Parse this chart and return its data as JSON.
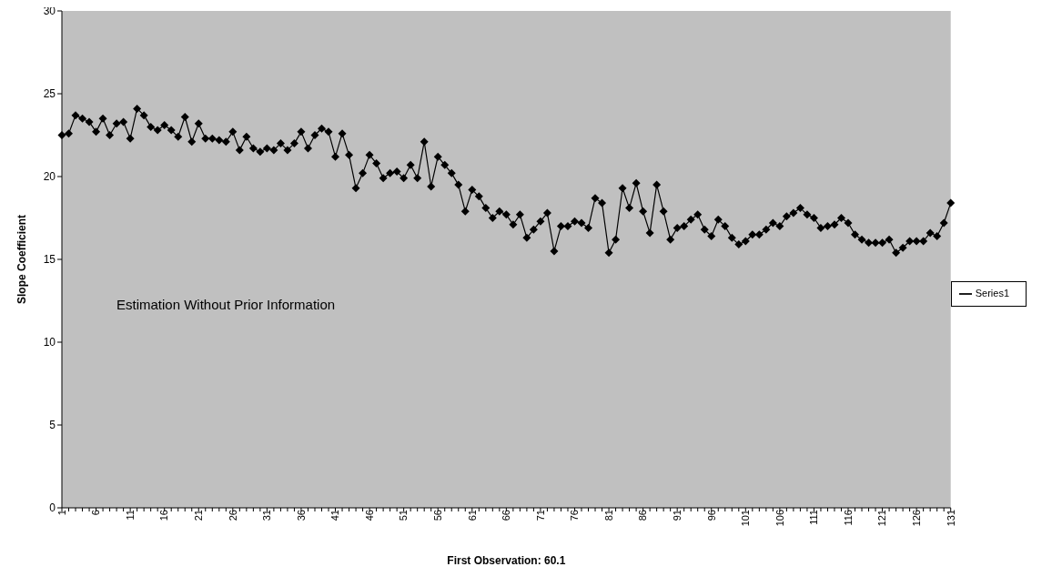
{
  "chart_data": {
    "type": "line",
    "xlabel": "First Observation: 60.1",
    "ylabel": "Slope Coefficient",
    "annotations": [
      "Estimation Without Prior Information"
    ],
    "categories": [
      "1",
      null,
      null,
      null,
      null,
      "6",
      null,
      null,
      null,
      null,
      "11",
      null,
      null,
      null,
      null,
      "16",
      null,
      null,
      null,
      null,
      "21",
      null,
      null,
      null,
      null,
      "26",
      null,
      null,
      null,
      null,
      "31",
      null,
      null,
      null,
      null,
      "36",
      null,
      null,
      null,
      null,
      "41",
      null,
      null,
      null,
      null,
      "46",
      null,
      null,
      null,
      null,
      "51",
      null,
      null,
      null,
      null,
      "56",
      null,
      null,
      null,
      null,
      "61",
      null,
      null,
      null,
      null,
      "66",
      null,
      null,
      null,
      null,
      "71",
      null,
      null,
      null,
      null,
      "76",
      null,
      null,
      null,
      null,
      "81",
      null,
      null,
      null,
      null,
      "86",
      null,
      null,
      null,
      null,
      "91",
      null,
      null,
      null,
      null,
      "96",
      null,
      null,
      null,
      null,
      "101",
      null,
      null,
      null,
      null,
      "106",
      null,
      null,
      null,
      null,
      "111",
      null,
      null,
      null,
      null,
      "116",
      null,
      null,
      null,
      null,
      "121",
      null,
      null,
      null,
      null,
      "126",
      null,
      null,
      null,
      null,
      "131"
    ],
    "series": [
      {
        "name": "Series1",
        "color": "#000000",
        "values": [
          22.5,
          22.6,
          23.7,
          23.5,
          23.3,
          22.7,
          23.5,
          22.5,
          23.2,
          23.3,
          22.3,
          24.1,
          23.7,
          23.0,
          22.8,
          23.1,
          22.8,
          22.4,
          23.6,
          22.1,
          23.2,
          22.3,
          22.3,
          22.2,
          22.1,
          22.7,
          21.6,
          22.4,
          21.7,
          21.5,
          21.7,
          21.6,
          22.0,
          21.6,
          22.0,
          22.7,
          21.7,
          22.5,
          22.9,
          22.7,
          21.2,
          22.6,
          21.3,
          19.3,
          20.2,
          21.3,
          20.8,
          19.9,
          20.2,
          20.3,
          19.9,
          20.7,
          19.9,
          22.1,
          19.4,
          21.2,
          20.7,
          20.2,
          19.5,
          17.9,
          19.2,
          18.8,
          18.1,
          17.5,
          17.9,
          17.7,
          17.1,
          17.7,
          16.3,
          16.8,
          17.3,
          17.8,
          15.5,
          17.0,
          17.0,
          17.3,
          17.2,
          16.9,
          18.7,
          18.4,
          15.4,
          16.2,
          19.3,
          18.1,
          19.6,
          17.9,
          16.6,
          19.5,
          17.9,
          16.2,
          16.9,
          17.0,
          17.4,
          17.7,
          16.8,
          16.4,
          17.4,
          17.0,
          16.3,
          15.9,
          16.1,
          16.5,
          16.5,
          16.8,
          17.2,
          17.0,
          17.6,
          17.8,
          18.1,
          17.7,
          17.5,
          16.9,
          17.0,
          17.1,
          17.5,
          17.2,
          16.5,
          16.2,
          16.0,
          16.0,
          16.0,
          16.2,
          15.4,
          15.7,
          16.1,
          16.1,
          16.1,
          16.6,
          16.4,
          17.2,
          18.4
        ]
      }
    ],
    "ylim": [
      0,
      30
    ],
    "yticks": [
      0,
      5,
      10,
      15,
      20,
      25,
      30
    ],
    "grid": false,
    "legend": "right",
    "marker": "diamond",
    "line_style": "solid"
  }
}
